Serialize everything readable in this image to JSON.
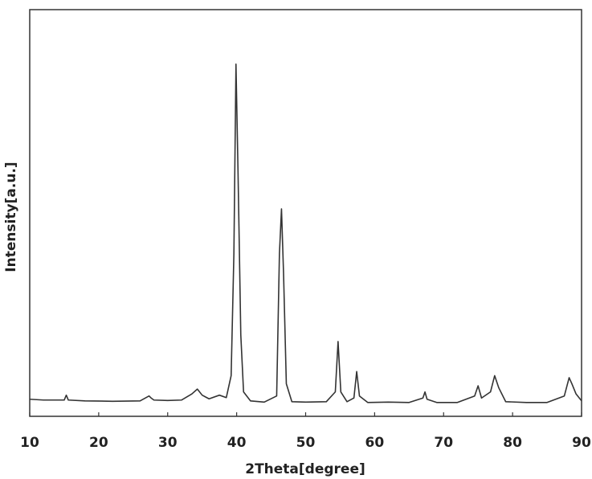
{
  "chart_data": {
    "type": "line",
    "x_label": "2Theta[degree]",
    "y_label": "Intensity[a.u.]",
    "xlim": [
      10,
      90
    ],
    "xticks": [
      10,
      20,
      30,
      40,
      50,
      60,
      70,
      80,
      90
    ],
    "ylim": [
      0,
      100
    ],
    "grid": false,
    "x": [
      10,
      12,
      15,
      15.3,
      15.6,
      18,
      22,
      26,
      27.3,
      27.6,
      28,
      30,
      32,
      33.5,
      34.3,
      35,
      36,
      37.5,
      38.5,
      39.2,
      39.6,
      39.9,
      40.2,
      40.6,
      41,
      42,
      44,
      45.8,
      46.2,
      46.5,
      46.8,
      47.2,
      48,
      50,
      53,
      54.3,
      54.7,
      55.1,
      56,
      57,
      57.4,
      57.8,
      59,
      62,
      65,
      67,
      67.3,
      67.6,
      69,
      72,
      74.5,
      75,
      75.5,
      76.8,
      77.4,
      78,
      79,
      82,
      85,
      87.5,
      88.2,
      88.6,
      89.2,
      90
    ],
    "series": [
      {
        "color": "#333333",
        "values": [
          4.2,
          4.0,
          4.0,
          5.2,
          4.0,
          3.8,
          3.7,
          3.8,
          5.0,
          4.5,
          4.0,
          3.9,
          4.0,
          5.5,
          6.7,
          5.2,
          4.3,
          5.2,
          4.6,
          10,
          40,
          86.6,
          60,
          20,
          6,
          3.8,
          3.5,
          5,
          40,
          51,
          35,
          8,
          3.6,
          3.5,
          3.6,
          6,
          18.4,
          6,
          3.6,
          4.5,
          11,
          5,
          3.4,
          3.5,
          3.4,
          4.5,
          6,
          4.2,
          3.4,
          3.4,
          5,
          7.5,
          4.5,
          6,
          10,
          7,
          3.6,
          3.4,
          3.4,
          5,
          9.5,
          8,
          5.5,
          3.8
        ]
      }
    ]
  }
}
